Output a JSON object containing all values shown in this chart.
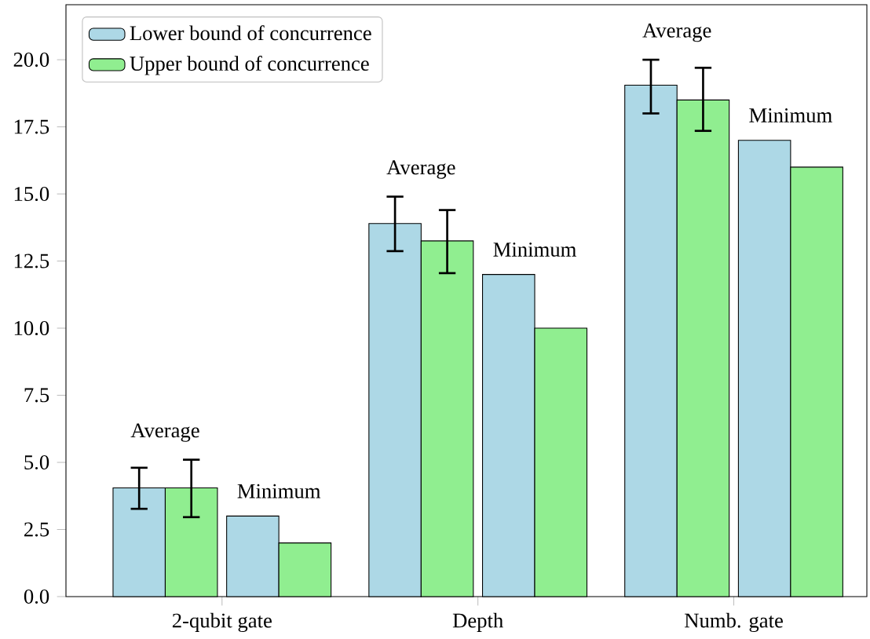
{
  "chart_data": {
    "type": "bar",
    "categories": [
      "2-qubit gate",
      "Depth",
      "Numb. gate"
    ],
    "ylim": [
      0,
      22.05
    ],
    "yticks": [
      {
        "value": 0,
        "label": "0.0"
      },
      2.5,
      {
        "value": 5,
        "label": "5.0"
      },
      7.5,
      {
        "value": 10,
        "label": "10.0"
      },
      12.5,
      {
        "value": 15,
        "label": "15.0"
      },
      17.5,
      {
        "value": 20,
        "label": "20.0"
      }
    ],
    "series": [
      {
        "name": "Lower bound of concurrence",
        "color": "#add8e6",
        "values": [
          4.05,
          13.9,
          19.05
        ],
        "errors": [
          [
            3.27,
            4.8
          ],
          [
            12.87,
            14.9
          ],
          [
            18.0,
            20.0
          ]
        ]
      },
      {
        "name": "Upper bound of concurrence",
        "color": "#90ee90",
        "values": [
          4.05,
          13.25,
          18.5
        ],
        "errors": [
          [
            2.96,
            5.1
          ],
          [
            12.05,
            14.4
          ],
          [
            17.35,
            19.7
          ]
        ]
      },
      {
        "color": "#add8e6",
        "values": [
          3,
          12,
          17
        ]
      },
      {
        "color": "#90ee90",
        "values": [
          2,
          10,
          16
        ]
      }
    ],
    "annotations": [
      "Average",
      "Minimum",
      "Average",
      "Minimum",
      "Average",
      "Minimum"
    ],
    "legend": "top left",
    "grid": false
  }
}
